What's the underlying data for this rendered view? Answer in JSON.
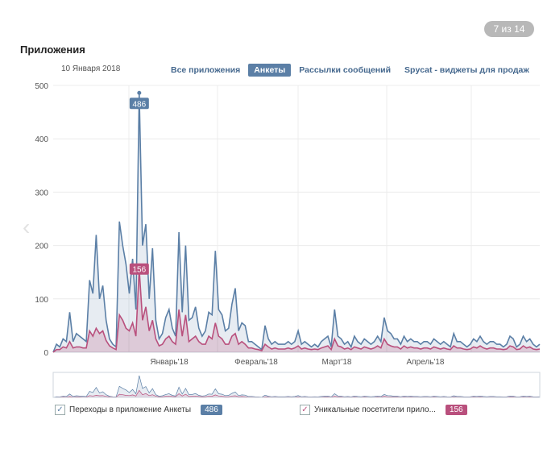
{
  "counter": "7 из 14",
  "header": {
    "title": "Приложения",
    "date": "10 Января 2018"
  },
  "tabs": [
    {
      "label": "Все приложения"
    },
    {
      "label": "Анкеты"
    },
    {
      "label": "Рассылки сообщений"
    },
    {
      "label": "Spycat - виджеты для продаж"
    }
  ],
  "legend": [
    {
      "label": "Переходы в приложение Анкеты",
      "badge": "486"
    },
    {
      "label": "Уникальные посетители прило...",
      "badge": "156"
    }
  ],
  "colors": {
    "series1": "#5b7fa6",
    "series2": "#b9507d"
  },
  "chart_data": {
    "type": "area",
    "ylim": [
      0,
      500
    ],
    "yticks": [
      0,
      100,
      200,
      300,
      400,
      500
    ],
    "x_labels": [
      "Январь'18",
      "Февраль'18",
      "Март'18",
      "Апрель'18"
    ],
    "tooltips": [
      "486",
      "156"
    ],
    "series": [
      {
        "name": "Переходы в приложение Анкеты",
        "color": "#5b7fa6",
        "values": [
          0,
          15,
          10,
          25,
          20,
          75,
          20,
          35,
          30,
          25,
          20,
          135,
          110,
          220,
          100,
          125,
          60,
          25,
          15,
          10,
          245,
          200,
          165,
          110,
          175,
          80,
          486,
          200,
          240,
          100,
          195,
          60,
          25,
          35,
          65,
          80,
          45,
          30,
          225,
          75,
          200,
          60,
          65,
          85,
          45,
          30,
          40,
          75,
          70,
          190,
          80,
          70,
          40,
          45,
          90,
          120,
          40,
          55,
          50,
          20,
          20,
          15,
          10,
          5,
          50,
          25,
          15,
          20,
          15,
          15,
          15,
          20,
          15,
          20,
          40,
          15,
          20,
          15,
          10,
          15,
          10,
          20,
          25,
          30,
          10,
          80,
          30,
          25,
          15,
          20,
          10,
          30,
          20,
          15,
          25,
          20,
          15,
          20,
          30,
          20,
          65,
          40,
          35,
          25,
          25,
          15,
          30,
          20,
          25,
          20,
          20,
          15,
          20,
          20,
          15,
          25,
          20,
          15,
          20,
          15,
          10,
          35,
          20,
          20,
          15,
          10,
          15,
          25,
          20,
          30,
          20,
          15,
          20,
          20,
          15,
          15,
          10,
          15,
          30,
          25,
          10,
          15,
          30,
          20,
          25,
          15,
          10,
          15
        ]
      },
      {
        "name": "Уникальные посетители прило...",
        "color": "#b9507d",
        "values": [
          0,
          5,
          5,
          10,
          8,
          20,
          8,
          10,
          10,
          8,
          8,
          40,
          30,
          45,
          35,
          40,
          22,
          12,
          8,
          5,
          70,
          60,
          45,
          40,
          55,
          30,
          156,
          60,
          85,
          40,
          60,
          25,
          12,
          15,
          25,
          30,
          20,
          15,
          80,
          30,
          70,
          20,
          25,
          30,
          20,
          15,
          15,
          30,
          25,
          55,
          30,
          25,
          15,
          15,
          30,
          35,
          15,
          20,
          15,
          8,
          8,
          6,
          5,
          3,
          15,
          10,
          6,
          8,
          6,
          6,
          6,
          8,
          6,
          8,
          12,
          6,
          8,
          6,
          5,
          6,
          5,
          8,
          10,
          12,
          5,
          25,
          12,
          10,
          6,
          8,
          5,
          10,
          8,
          6,
          10,
          8,
          6,
          8,
          12,
          8,
          25,
          15,
          12,
          10,
          10,
          6,
          12,
          8,
          10,
          8,
          8,
          6,
          8,
          8,
          6,
          10,
          8,
          6,
          8,
          6,
          5,
          12,
          8,
          8,
          6,
          5,
          6,
          10,
          8,
          12,
          8,
          6,
          8,
          8,
          6,
          6,
          5,
          6,
          12,
          10,
          5,
          6,
          12,
          8,
          10,
          6,
          5,
          6
        ]
      }
    ]
  }
}
